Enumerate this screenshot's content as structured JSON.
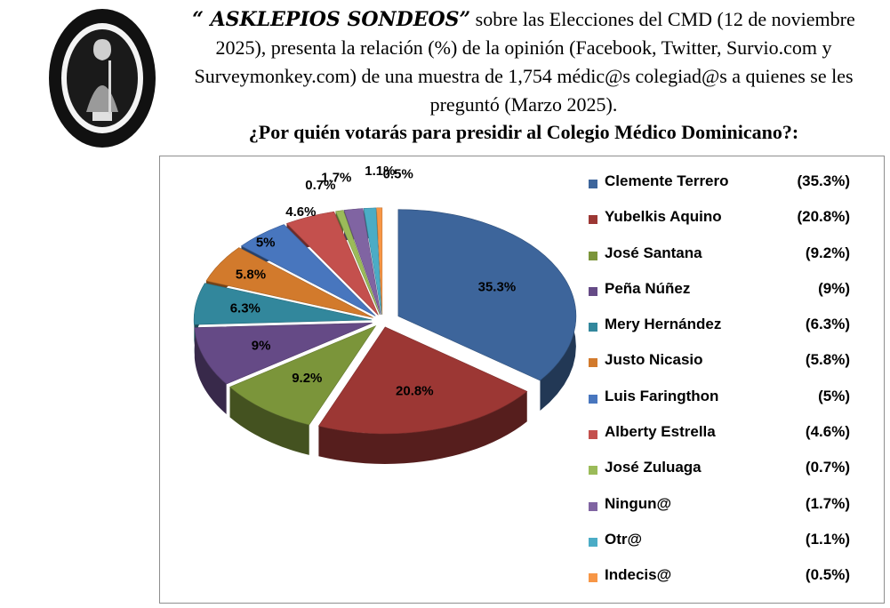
{
  "header": {
    "brand": "“ ASKLEPIOS SONDEOS”",
    "line1_rest": " sobre las Elecciones del CMD (12 de noviembre",
    "line2": "2025), presenta la relación (%) de la opinión (Facebook, Twitter, Survio.com y",
    "line3": "Surveymonkey.com) de una muestra de 1,754 médic@s colegiad@s a quienes se les",
    "line4": "preguntó (Marzo 2025).",
    "question": "¿Por quién votarás para presidir al Colegio Médico Dominicano?:"
  },
  "logo": {
    "description_icon": "seal-icon"
  },
  "chart_data": {
    "type": "pie",
    "style": "3d-exploded",
    "legend_position": "right",
    "slices": [
      {
        "name": "Clemente Terrero",
        "value": 35.3,
        "label": "35.3%",
        "legend_value": "(35.3%)",
        "color": "#3d659b"
      },
      {
        "name": "Yubelkis Aquino",
        "value": 20.8,
        "label": "20.8%",
        "legend_value": "(20.8%)",
        "color": "#9c3734"
      },
      {
        "name": "José Santana",
        "value": 9.2,
        "label": "9.2%",
        "legend_value": "(9.2%)",
        "color": "#7b953a"
      },
      {
        "name": "Peña Núñez",
        "value": 9,
        "label": "9%",
        "legend_value": "(9%)",
        "color": "#654a86"
      },
      {
        "name": "Mery Hernández",
        "value": 6.3,
        "label": "6.3%",
        "legend_value": "(6.3%)",
        "color": "#32879c"
      },
      {
        "name": "Justo Nicasio",
        "value": 5.8,
        "label": "5.8%",
        "legend_value": "(5.8%)",
        "color": "#d27a2c"
      },
      {
        "name": "Luis Faringthon",
        "value": 5,
        "label": "5%",
        "legend_value": "(5%)",
        "color": "#4876be"
      },
      {
        "name": "Alberty Estrella",
        "value": 4.6,
        "label": "4.6%",
        "legend_value": "(4.6%)",
        "color": "#c4504d"
      },
      {
        "name": "José Zuluaga",
        "value": 0.7,
        "label": "0.7%",
        "legend_value": "(0.7%)",
        "color": "#9bbb59"
      },
      {
        "name": "Ningun@",
        "value": 1.7,
        "label": "1.7%",
        "legend_value": "(1.7%)",
        "color": "#8064a2"
      },
      {
        "name": "Otr@",
        "value": 1.1,
        "label": "1.1%",
        "legend_value": "(1.1%)",
        "color": "#4bacc6"
      },
      {
        "name": "Indecis@",
        "value": 0.5,
        "label": "0.5%",
        "legend_value": "(0.5%)",
        "color": "#f79646"
      }
    ]
  }
}
